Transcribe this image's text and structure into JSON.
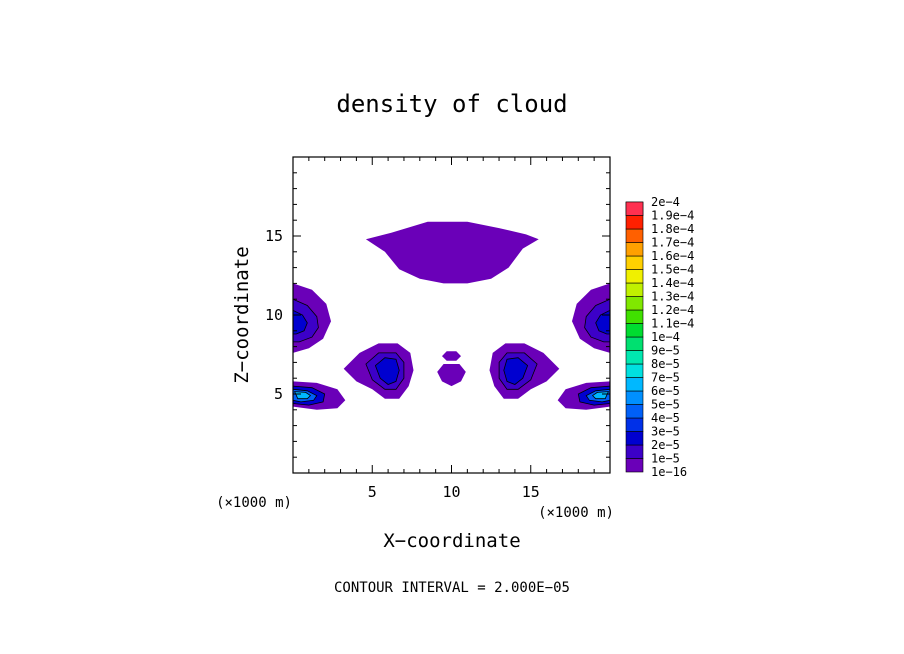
{
  "chart_data": {
    "type": "heatmap",
    "title": "density of cloud",
    "xlabel": "X−coordinate",
    "ylabel": "Z−coordinate",
    "x_unit_label": "(×1000 m)",
    "y_unit_label": "(×1000 m)",
    "xlim": [
      0,
      20
    ],
    "ylim": [
      0,
      20
    ],
    "x_ticks": [
      5,
      10,
      15
    ],
    "x_tick_labels": [
      "5",
      "10",
      "15"
    ],
    "y_ticks": [
      5,
      10,
      15
    ],
    "y_tick_labels": [
      "5",
      "10",
      "15"
    ],
    "footer": "CONTOUR INTERVAL = 2.000E−05",
    "colorbar": {
      "levels": [
        {
          "label": "1e−16",
          "color": "#6a00b8"
        },
        {
          "label": "1e−5",
          "color": "#3c00c8"
        },
        {
          "label": "2e−5",
          "color": "#0000d0"
        },
        {
          "label": "3e−5",
          "color": "#0030e8"
        },
        {
          "label": "4e−5",
          "color": "#0060f8"
        },
        {
          "label": "5e−5",
          "color": "#0090ff"
        },
        {
          "label": "6e−5",
          "color": "#00b8ff"
        },
        {
          "label": "7e−5",
          "color": "#00e0e0"
        },
        {
          "label": "8e−5",
          "color": "#00e8b0"
        },
        {
          "label": "9e−5",
          "color": "#00e070"
        },
        {
          "label": "1e−4",
          "color": "#00dc30"
        },
        {
          "label": "1.1e−4",
          "color": "#40e000"
        },
        {
          "label": "1.2e−4",
          "color": "#80e800"
        },
        {
          "label": "1.3e−4",
          "color": "#c0f000"
        },
        {
          "label": "1.4e−4",
          "color": "#f0f000"
        },
        {
          "label": "1.5e−4",
          "color": "#ffd000"
        },
        {
          "label": "1.6e−4",
          "color": "#ffa000"
        },
        {
          "label": "1.7e−4",
          "color": "#ff6000"
        },
        {
          "label": "1.8e−4",
          "color": "#ff2000"
        },
        {
          "label": "1.9e−4",
          "color": "#ff3050"
        },
        {
          "label": "2e−4",
          "color": "#ff8090"
        }
      ]
    },
    "regions": [
      {
        "name": "upper-cloud",
        "level": 0,
        "points": [
          [
            4.6,
            14.8
          ],
          [
            6.2,
            15.2
          ],
          [
            8.5,
            15.9
          ],
          [
            11.0,
            15.9
          ],
          [
            13.0,
            15.5
          ],
          [
            14.7,
            15.1
          ],
          [
            15.5,
            14.8
          ],
          [
            14.5,
            14.2
          ],
          [
            13.6,
            13.0
          ],
          [
            12.5,
            12.3
          ],
          [
            11.0,
            12.0
          ],
          [
            9.5,
            12.0
          ],
          [
            8.0,
            12.3
          ],
          [
            6.7,
            12.9
          ],
          [
            5.8,
            14.0
          ]
        ]
      },
      {
        "name": "left-upper-lobe",
        "level": 0,
        "points": [
          [
            0.0,
            12.0
          ],
          [
            1.2,
            11.6
          ],
          [
            2.1,
            10.7
          ],
          [
            2.4,
            9.6
          ],
          [
            1.9,
            8.5
          ],
          [
            1.0,
            7.9
          ],
          [
            0.0,
            7.6
          ]
        ]
      },
      {
        "name": "left-upper-lobe-core",
        "level": 1,
        "points": [
          [
            0.0,
            11.0
          ],
          [
            0.9,
            10.6
          ],
          [
            1.5,
            9.9
          ],
          [
            1.6,
            9.2
          ],
          [
            1.2,
            8.6
          ],
          [
            0.4,
            8.3
          ],
          [
            0.0,
            8.3
          ]
        ]
      },
      {
        "name": "left-upper-lobe-core2",
        "level": 2,
        "points": [
          [
            0.0,
            10.3
          ],
          [
            0.6,
            10.0
          ],
          [
            0.9,
            9.5
          ],
          [
            0.7,
            9.0
          ],
          [
            0.2,
            8.8
          ],
          [
            0.0,
            8.8
          ]
        ]
      },
      {
        "name": "right-upper-lobe",
        "level": 0,
        "points": [
          [
            20.0,
            12.0
          ],
          [
            18.8,
            11.6
          ],
          [
            17.9,
            10.7
          ],
          [
            17.6,
            9.6
          ],
          [
            18.1,
            8.5
          ],
          [
            19.0,
            7.9
          ],
          [
            20.0,
            7.6
          ]
        ]
      },
      {
        "name": "right-upper-lobe-core",
        "level": 1,
        "points": [
          [
            20.0,
            11.0
          ],
          [
            19.1,
            10.6
          ],
          [
            18.5,
            9.9
          ],
          [
            18.4,
            9.2
          ],
          [
            18.8,
            8.6
          ],
          [
            19.6,
            8.3
          ],
          [
            20.0,
            8.3
          ]
        ]
      },
      {
        "name": "right-upper-lobe-core2",
        "level": 2,
        "points": [
          [
            20.0,
            10.3
          ],
          [
            19.4,
            10.0
          ],
          [
            19.1,
            9.5
          ],
          [
            19.3,
            9.0
          ],
          [
            19.8,
            8.8
          ],
          [
            20.0,
            8.8
          ]
        ]
      },
      {
        "name": "left-lower-lobe",
        "level": 0,
        "points": [
          [
            0.0,
            5.8
          ],
          [
            1.5,
            5.7
          ],
          [
            2.8,
            5.3
          ],
          [
            3.3,
            4.6
          ],
          [
            2.8,
            4.1
          ],
          [
            1.5,
            4.0
          ],
          [
            0.0,
            4.2
          ]
        ]
      },
      {
        "name": "left-lower-lobe-core",
        "level": 2,
        "points": [
          [
            0.0,
            5.5
          ],
          [
            1.2,
            5.4
          ],
          [
            2.0,
            5.0
          ],
          [
            1.9,
            4.5
          ],
          [
            1.0,
            4.3
          ],
          [
            0.0,
            4.4
          ]
        ]
      },
      {
        "name": "left-lower-lobe-core2",
        "level": 4,
        "points": [
          [
            0.0,
            5.3
          ],
          [
            0.9,
            5.2
          ],
          [
            1.5,
            4.9
          ],
          [
            1.3,
            4.6
          ],
          [
            0.5,
            4.5
          ],
          [
            0.0,
            4.6
          ]
        ]
      },
      {
        "name": "left-lower-lobe-core3",
        "level": 6,
        "points": [
          [
            0.1,
            5.15
          ],
          [
            0.8,
            5.1
          ],
          [
            1.1,
            4.9
          ],
          [
            0.9,
            4.7
          ],
          [
            0.3,
            4.7
          ]
        ]
      },
      {
        "name": "right-lower-lobe",
        "level": 0,
        "points": [
          [
            20.0,
            5.8
          ],
          [
            18.5,
            5.7
          ],
          [
            17.2,
            5.3
          ],
          [
            16.7,
            4.6
          ],
          [
            17.2,
            4.1
          ],
          [
            18.5,
            4.0
          ],
          [
            20.0,
            4.2
          ]
        ]
      },
      {
        "name": "right-lower-lobe-core",
        "level": 2,
        "points": [
          [
            20.0,
            5.5
          ],
          [
            18.8,
            5.4
          ],
          [
            18.0,
            5.0
          ],
          [
            18.1,
            4.5
          ],
          [
            19.0,
            4.3
          ],
          [
            20.0,
            4.4
          ]
        ]
      },
      {
        "name": "right-lower-lobe-core2",
        "level": 4,
        "points": [
          [
            20.0,
            5.3
          ],
          [
            19.1,
            5.2
          ],
          [
            18.5,
            4.9
          ],
          [
            18.7,
            4.6
          ],
          [
            19.5,
            4.5
          ],
          [
            20.0,
            4.6
          ]
        ]
      },
      {
        "name": "right-lower-lobe-core3",
        "level": 6,
        "points": [
          [
            19.9,
            5.15
          ],
          [
            19.2,
            5.1
          ],
          [
            18.9,
            4.9
          ],
          [
            19.1,
            4.7
          ],
          [
            19.7,
            4.7
          ]
        ]
      },
      {
        "name": "left-mid-blob",
        "level": 0,
        "points": [
          [
            3.2,
            6.6
          ],
          [
            4.2,
            7.6
          ],
          [
            5.4,
            8.2
          ],
          [
            6.6,
            8.2
          ],
          [
            7.4,
            7.6
          ],
          [
            7.6,
            6.5
          ],
          [
            7.3,
            5.5
          ],
          [
            6.7,
            4.7
          ],
          [
            5.8,
            4.7
          ],
          [
            5.0,
            5.3
          ],
          [
            4.0,
            5.8
          ]
        ]
      },
      {
        "name": "left-mid-blob-core",
        "level": 1,
        "points": [
          [
            4.6,
            6.9
          ],
          [
            5.4,
            7.6
          ],
          [
            6.5,
            7.6
          ],
          [
            7.0,
            7.0
          ],
          [
            7.0,
            6.0
          ],
          [
            6.5,
            5.3
          ],
          [
            5.8,
            5.3
          ],
          [
            5.0,
            5.9
          ]
        ]
      },
      {
        "name": "left-mid-blob-core2",
        "level": 2,
        "points": [
          [
            5.2,
            6.8
          ],
          [
            5.8,
            7.3
          ],
          [
            6.5,
            7.2
          ],
          [
            6.7,
            6.5
          ],
          [
            6.5,
            5.8
          ],
          [
            6.0,
            5.6
          ],
          [
            5.5,
            6.0
          ]
        ]
      },
      {
        "name": "right-mid-blob",
        "level": 0,
        "points": [
          [
            16.8,
            6.6
          ],
          [
            15.8,
            7.6
          ],
          [
            14.6,
            8.2
          ],
          [
            13.4,
            8.2
          ],
          [
            12.6,
            7.6
          ],
          [
            12.4,
            6.5
          ],
          [
            12.7,
            5.5
          ],
          [
            13.3,
            4.7
          ],
          [
            14.2,
            4.7
          ],
          [
            15.0,
            5.3
          ],
          [
            16.0,
            5.8
          ]
        ]
      },
      {
        "name": "right-mid-blob-core",
        "level": 1,
        "points": [
          [
            15.4,
            6.9
          ],
          [
            14.6,
            7.6
          ],
          [
            13.5,
            7.6
          ],
          [
            13.0,
            7.0
          ],
          [
            13.0,
            6.0
          ],
          [
            13.5,
            5.3
          ],
          [
            14.2,
            5.3
          ],
          [
            15.0,
            5.9
          ]
        ]
      },
      {
        "name": "right-mid-blob-core2",
        "level": 2,
        "points": [
          [
            14.8,
            6.8
          ],
          [
            14.2,
            7.3
          ],
          [
            13.5,
            7.2
          ],
          [
            13.3,
            6.5
          ],
          [
            13.5,
            5.8
          ],
          [
            14.0,
            5.6
          ],
          [
            14.5,
            6.0
          ]
        ]
      },
      {
        "name": "center-small-top",
        "level": 0,
        "points": [
          [
            9.4,
            7.4
          ],
          [
            9.7,
            7.7
          ],
          [
            10.3,
            7.7
          ],
          [
            10.6,
            7.4
          ],
          [
            10.3,
            7.1
          ],
          [
            9.7,
            7.1
          ]
        ]
      },
      {
        "name": "center-small-bottom",
        "level": 0,
        "points": [
          [
            9.1,
            6.4
          ],
          [
            9.5,
            6.9
          ],
          [
            10.5,
            6.9
          ],
          [
            10.9,
            6.4
          ],
          [
            10.6,
            5.8
          ],
          [
            10.0,
            5.5
          ],
          [
            9.4,
            5.8
          ]
        ]
      }
    ]
  }
}
